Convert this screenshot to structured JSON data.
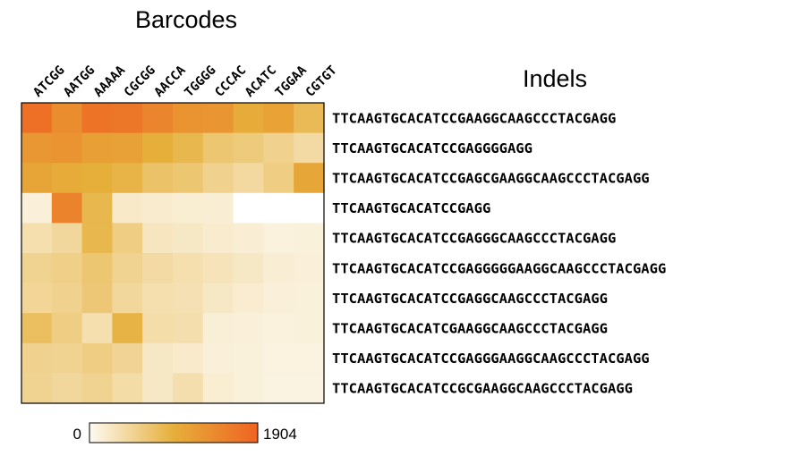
{
  "chart_data": {
    "type": "heatmap",
    "title": "Barcodes",
    "row_axis_title": "Indels",
    "columns": [
      "ATCGG",
      "AATGG",
      "AAAAA",
      "CGCGG",
      "AACCA",
      "TGGGG",
      "CCCAC",
      "ACATC",
      "TGGAA",
      "CGTGT"
    ],
    "rows": [
      "TTCAAGTGCACATCCGAAGGCAAGCCCTACGAGG",
      "TTCAAGTGCACATCCGAGGGGAGG",
      "TTCAAGTGCACATCCGAGCGAAGGCAAGCCCTACGAGG",
      "TTCAAGTGCACATCCGAGG",
      "TTCAAGTGCACATCCGAGGGCAAGCCCTACGAGG",
      "TTCAAGTGCACATCCGAGGGGGAAGGCAAGCCCTACGAGG",
      "TTCAAGTGCACATCCGAGGCAAGCCCTACGAGG",
      "TTCAAGTGCACATCGAAGGCAAGCCCTACGAGG",
      "TTCAAGTGCACATCCGAGGGAAGGCAAGCCCTACGAGG",
      "TTCAAGTGCACATCCGCGAAGGCAAGCCCTACGAGG"
    ],
    "values": [
      [
        1750,
        1380,
        1700,
        1650,
        1480,
        1300,
        1280,
        1000,
        1120,
        800
      ],
      [
        1250,
        1300,
        1150,
        1130,
        950,
        850,
        650,
        600,
        500,
        380
      ],
      [
        1080,
        1000,
        950,
        880,
        700,
        650,
        500,
        400,
        560,
        1050
      ],
      [
        100,
        1500,
        850,
        180,
        150,
        130,
        120,
        0,
        0,
        0
      ],
      [
        320,
        420,
        850,
        560,
        240,
        200,
        150,
        120,
        70,
        80
      ],
      [
        480,
        530,
        650,
        480,
        380,
        320,
        260,
        200,
        120,
        100
      ],
      [
        450,
        500,
        630,
        420,
        320,
        300,
        200,
        140,
        100,
        80
      ],
      [
        750,
        560,
        320,
        900,
        350,
        330,
        110,
        90,
        70,
        80
      ],
      [
        500,
        480,
        560,
        460,
        200,
        170,
        100,
        80,
        60,
        60
      ],
      [
        480,
        420,
        480,
        360,
        200,
        330,
        130,
        80,
        50,
        50
      ]
    ],
    "colorbar": {
      "min": 0,
      "max": 1904,
      "min_label": "0",
      "max_label": "1904"
    },
    "colors": {
      "low": "#fcf7ea",
      "mid": "#e6af3a",
      "high": "#ef6322",
      "border": "#000000"
    }
  }
}
